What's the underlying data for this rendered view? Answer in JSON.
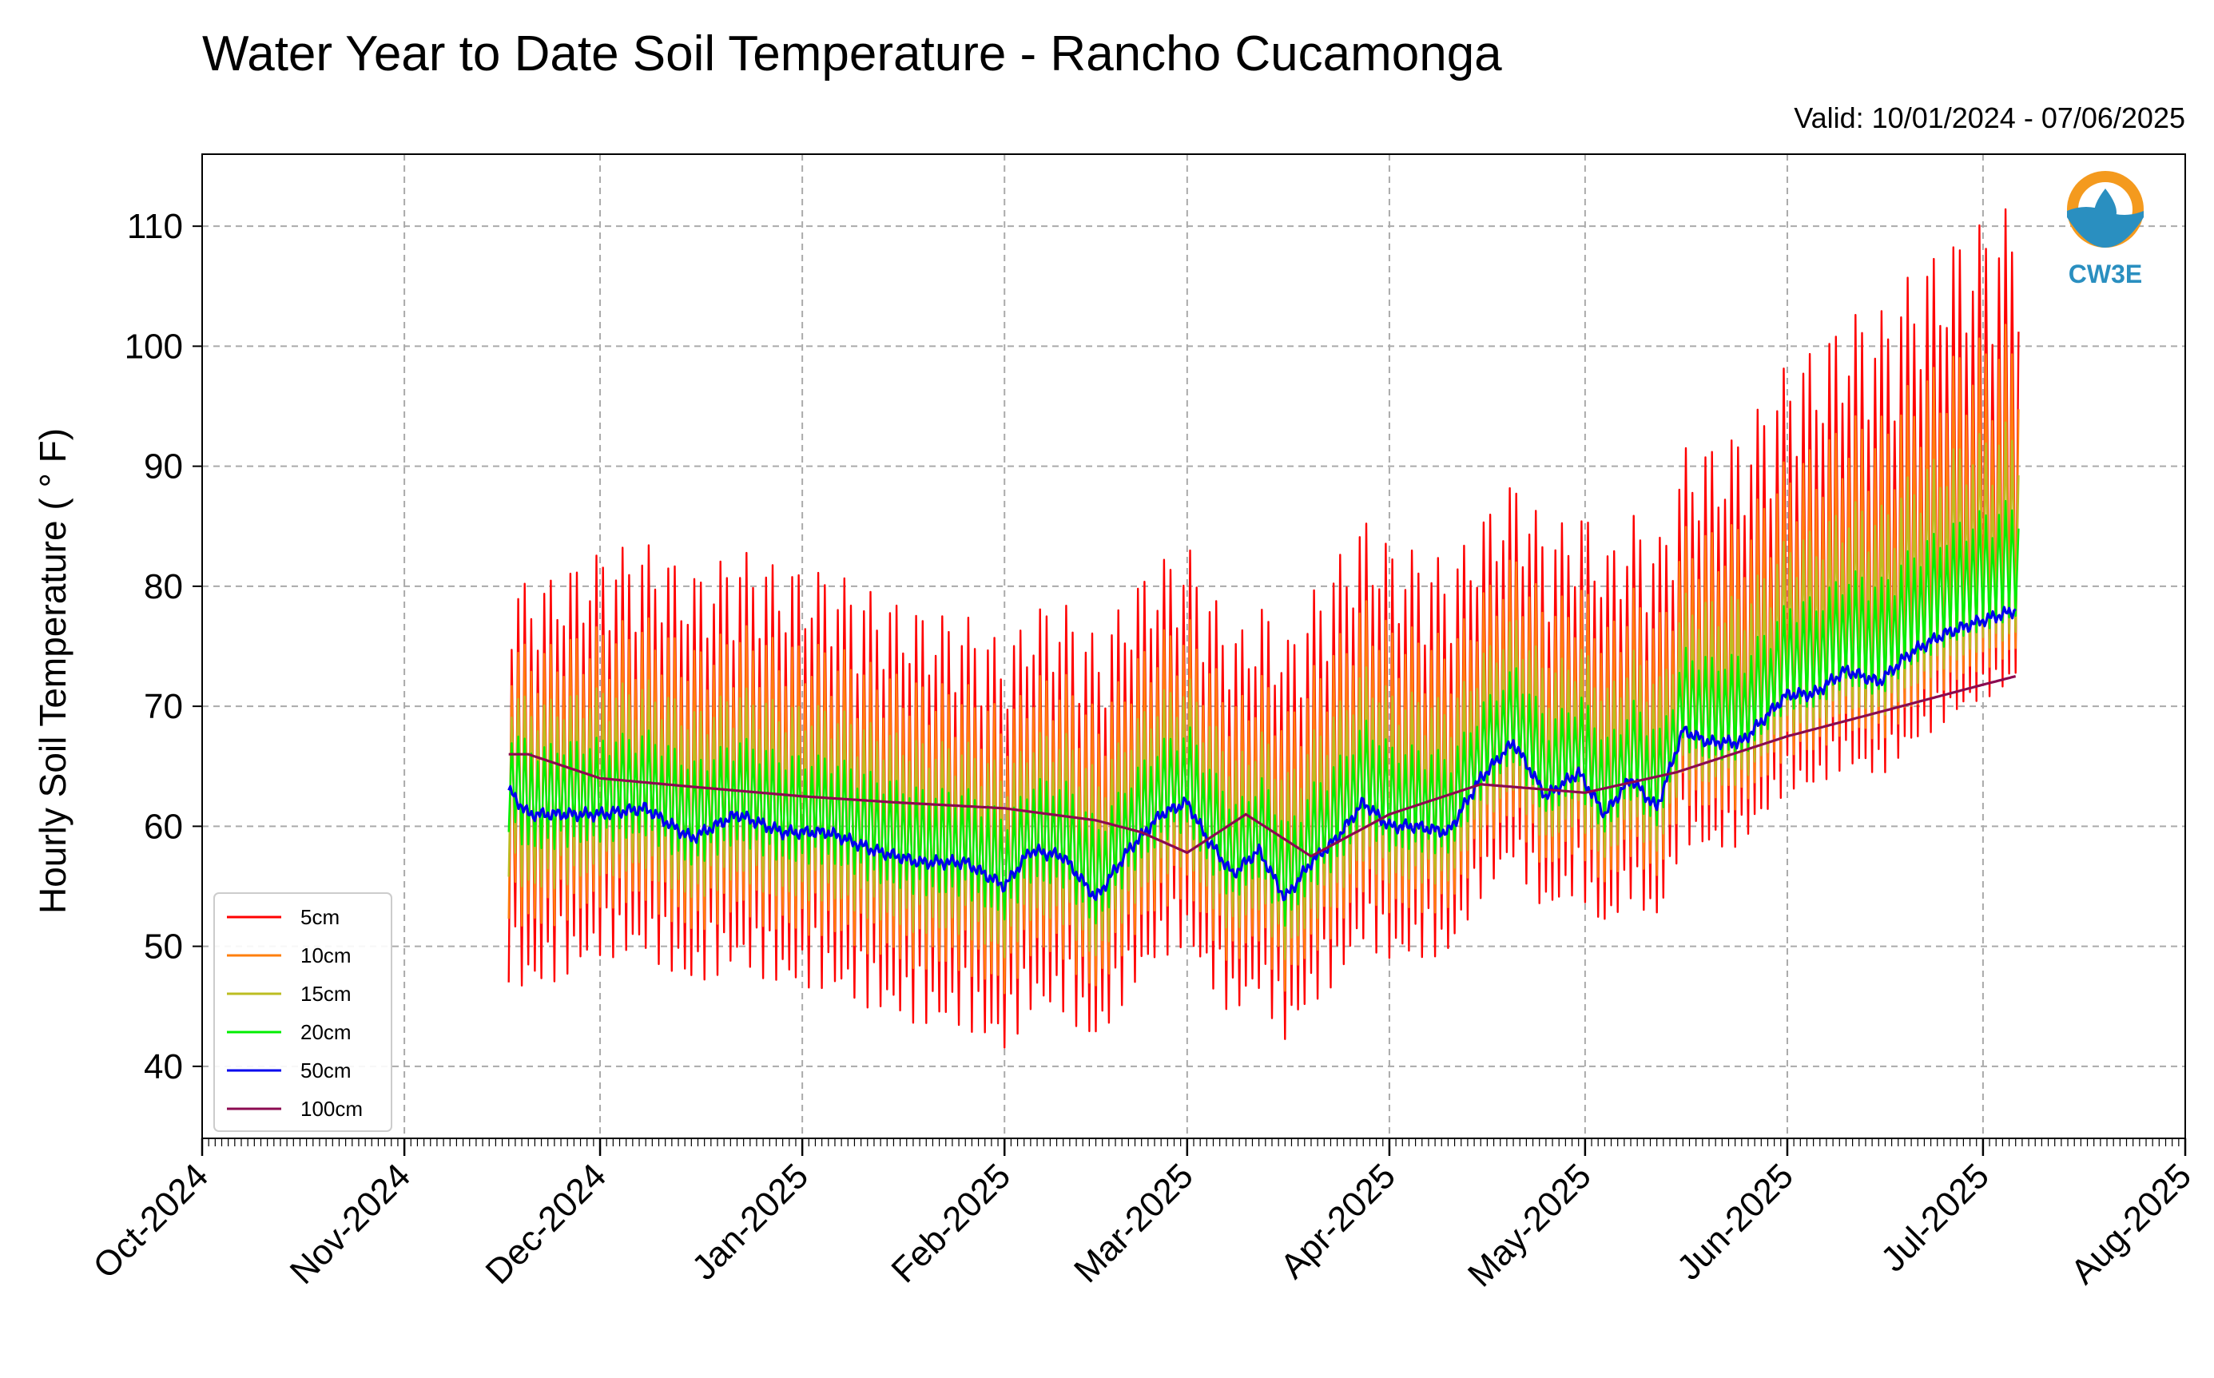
{
  "chart_data": {
    "type": "line",
    "title": "Water Year to Date Soil Temperature - Rancho Cucamonga",
    "subtitle": "Valid: 10/01/2024 - 07/06/2025",
    "ylabel": "Hourly Soil Temperature ( ° F)",
    "xlabel": "",
    "xlim": [
      "2024-10-01",
      "2025-08-01"
    ],
    "ylim": [
      34,
      116
    ],
    "grid": true,
    "legend_position": "lower-left",
    "y_ticks": [
      40,
      50,
      60,
      70,
      80,
      90,
      100,
      110
    ],
    "x_ticks": [
      {
        "date": "2024-10-01",
        "label": "Oct-2024"
      },
      {
        "date": "2024-11-01",
        "label": "Nov-2024"
      },
      {
        "date": "2024-12-01",
        "label": "Dec-2024"
      },
      {
        "date": "2025-01-01",
        "label": "Jan-2025"
      },
      {
        "date": "2025-02-01",
        "label": "Feb-2025"
      },
      {
        "date": "2025-03-01",
        "label": "Mar-2025"
      },
      {
        "date": "2025-04-01",
        "label": "Apr-2025"
      },
      {
        "date": "2025-05-01",
        "label": "May-2025"
      },
      {
        "date": "2025-06-01",
        "label": "Jun-2025"
      },
      {
        "date": "2025-07-01",
        "label": "Jul-2025"
      },
      {
        "date": "2025-08-01",
        "label": "Aug-2025"
      }
    ],
    "base_series": {
      "x": [
        "2024-11-17",
        "2024-11-20",
        "2024-11-25",
        "2024-12-01",
        "2024-12-08",
        "2024-12-15",
        "2024-12-22",
        "2024-12-29",
        "2025-01-05",
        "2025-01-12",
        "2025-01-19",
        "2025-01-26",
        "2025-02-01",
        "2025-02-05",
        "2025-02-10",
        "2025-02-15",
        "2025-02-20",
        "2025-02-25",
        "2025-03-01",
        "2025-03-04",
        "2025-03-08",
        "2025-03-12",
        "2025-03-16",
        "2025-03-20",
        "2025-03-24",
        "2025-03-28",
        "2025-04-01",
        "2025-04-05",
        "2025-04-10",
        "2025-04-15",
        "2025-04-20",
        "2025-04-25",
        "2025-04-30",
        "2025-05-04",
        "2025-05-08",
        "2025-05-12",
        "2025-05-16",
        "2025-05-20",
        "2025-05-25",
        "2025-06-01",
        "2025-06-05",
        "2025-06-10",
        "2025-06-15",
        "2025-06-20",
        "2025-06-25",
        "2025-06-30",
        "2025-07-06"
      ],
      "y": [
        63,
        61,
        61,
        61,
        61.5,
        59,
        61,
        59.5,
        59.5,
        58,
        57,
        57,
        55,
        58,
        57.5,
        54,
        58,
        61,
        62,
        59,
        56,
        58,
        54,
        57,
        59,
        62,
        60,
        60,
        59.5,
        64,
        67,
        62.5,
        64.5,
        61,
        64,
        61.5,
        68,
        67,
        67,
        71,
        71,
        73,
        72,
        74.5,
        76,
        77,
        78
      ]
    },
    "series": [
      {
        "name": "5cm",
        "color": "#ff0000",
        "offset": 0,
        "amp_low": 1.0,
        "amp_high": 1.0
      },
      {
        "name": "10cm",
        "color": "#ff7f0e",
        "offset": 0.5,
        "amp_low": 0.7,
        "amp_high": 0.7
      },
      {
        "name": "15cm",
        "color": "#bcbd22",
        "offset": 0.8,
        "amp_low": 0.5,
        "amp_high": 0.45
      },
      {
        "name": "20cm",
        "color": "#00ee00",
        "offset": 1.0,
        "amp_low": 0.28,
        "amp_high": 0.25
      },
      {
        "name": "50cm",
        "color": "#0000ee",
        "offset": 0,
        "amp_low": 0.0,
        "amp_high": 0.0
      },
      {
        "name": "100cm",
        "color": "#8b0a50",
        "offset": 0,
        "amp_low": 0.0,
        "amp_high": 0.0,
        "x": [
          "2024-11-17",
          "2024-11-20",
          "2024-12-01",
          "2024-12-15",
          "2025-01-01",
          "2025-01-15",
          "2025-02-01",
          "2025-02-15",
          "2025-02-22",
          "2025-03-01",
          "2025-03-10",
          "2025-03-20",
          "2025-04-01",
          "2025-04-15",
          "2025-05-01",
          "2025-05-15",
          "2025-06-01",
          "2025-06-15",
          "2025-07-01",
          "2025-07-06"
        ],
        "y": [
          66,
          66,
          64,
          63.3,
          62.5,
          62,
          61.5,
          60.5,
          59.5,
          57.8,
          61,
          57.5,
          61,
          63.5,
          62.8,
          64.5,
          67.5,
          69.5,
          71.8,
          72.5
        ]
      }
    ],
    "daily_swing": {
      "x": [
        "2024-11-17",
        "2024-12-01",
        "2025-01-01",
        "2025-02-01",
        "2025-02-20",
        "2025-03-10",
        "2025-03-25",
        "2025-04-15",
        "2025-05-10",
        "2025-06-01",
        "2025-06-20",
        "2025-07-06"
      ],
      "up": [
        18,
        22,
        22,
        20,
        22,
        20,
        24,
        22,
        22,
        28,
        32,
        34
      ],
      "down": [
        16,
        12,
        13,
        14,
        12,
        12,
        12,
        10,
        10,
        8,
        8,
        6
      ]
    }
  },
  "logo": {
    "text": "CW3E"
  }
}
